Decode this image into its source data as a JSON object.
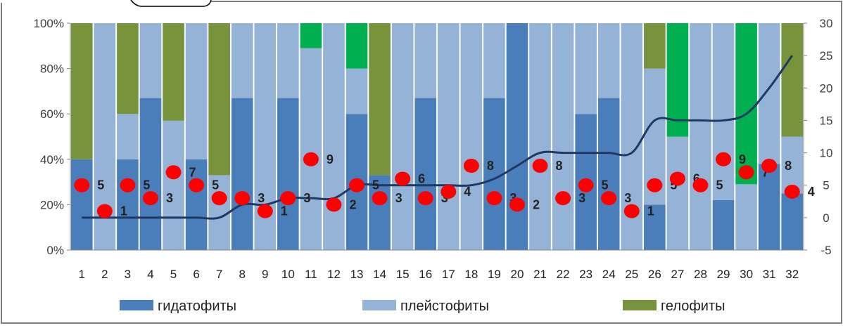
{
  "chart_data": {
    "type": "bar",
    "stacked": "percent",
    "categories": [
      "1",
      "2",
      "3",
      "4",
      "5",
      "6",
      "7",
      "8",
      "9",
      "10",
      "11",
      "12",
      "13",
      "14",
      "15",
      "16",
      "17",
      "18",
      "19",
      "20",
      "21",
      "22",
      "23",
      "24",
      "25",
      "26",
      "27",
      "28",
      "29",
      "30",
      "31",
      "32"
    ],
    "series": [
      {
        "name": "гидатофиты",
        "color": "#4a7ebb",
        "values": [
          40,
          0,
          40,
          67,
          0,
          40,
          0,
          67,
          0,
          67,
          0,
          0,
          60,
          33,
          0,
          67,
          0,
          0,
          67,
          100,
          0,
          0,
          60,
          67,
          0,
          20,
          0,
          0,
          22,
          0,
          38,
          25
        ]
      },
      {
        "name": "плейстофиты",
        "color": "#95b3d7",
        "values": [
          0,
          100,
          20,
          33,
          57,
          60,
          33,
          33,
          100,
          33,
          89,
          100,
          20,
          0,
          100,
          33,
          100,
          100,
          33,
          0,
          100,
          100,
          40,
          33,
          100,
          60,
          50,
          100,
          78,
          29,
          62,
          25
        ]
      },
      {
        "name": "гелофиты",
        "color": "#77933c",
        "values": [
          60,
          0,
          40,
          0,
          43,
          0,
          67,
          0,
          0,
          0,
          0,
          0,
          0,
          67,
          0,
          0,
          0,
          0,
          0,
          0,
          0,
          0,
          0,
          0,
          0,
          20,
          0,
          0,
          0,
          0,
          0,
          50
        ]
      },
      {
        "name": "",
        "color": "#00b050",
        "values": [
          0,
          0,
          0,
          0,
          0,
          0,
          0,
          0,
          0,
          0,
          11,
          0,
          20,
          0,
          0,
          0,
          0,
          0,
          0,
          0,
          0,
          0,
          0,
          0,
          0,
          0,
          50,
          0,
          0,
          71,
          0,
          0
        ]
      }
    ],
    "points": {
      "color": "#ff0000",
      "values": [
        5,
        1,
        5,
        3,
        7,
        5,
        3,
        3,
        1,
        3,
        9,
        2,
        5,
        3,
        6,
        3,
        4,
        8,
        3,
        2,
        8,
        3,
        5,
        3,
        1,
        5,
        6,
        5,
        9,
        7,
        8,
        4
      ],
      "labels": [
        "5",
        "1",
        "5",
        "3",
        "7",
        "5",
        "3",
        "3",
        "1",
        "3",
        "9",
        "2",
        "5",
        "3",
        "6",
        "3",
        "4",
        "8",
        "3",
        "2",
        "8",
        "3",
        "5",
        "3",
        "1",
        "5",
        "6",
        "5",
        "9",
        "7",
        "8",
        "4"
      ]
    },
    "line": {
      "color": "#1f3864",
      "values": [
        0,
        0,
        0,
        0,
        0,
        0,
        0,
        2,
        2,
        3,
        3,
        3,
        5,
        5,
        5,
        5,
        5,
        5,
        6,
        8,
        10,
        10,
        10,
        10,
        10,
        15,
        15,
        15,
        15,
        16,
        20,
        25
      ]
    },
    "y_left": {
      "min": 0,
      "max": 100,
      "ticks": [
        "0%",
        "20%",
        "40%",
        "60%",
        "80%",
        "100%"
      ]
    },
    "y_right": {
      "min": -5,
      "max": 30,
      "ticks": [
        "-5",
        "0",
        "5",
        "10",
        "15",
        "20",
        "25",
        "30"
      ]
    },
    "grid": false,
    "legend_position": "bottom",
    "legend": [
      {
        "label": "гидатофиты",
        "color": "#4a7ebb"
      },
      {
        "label": "плейстофиты",
        "color": "#95b3d7"
      },
      {
        "label": "гелофиты",
        "color": "#77933c"
      }
    ]
  }
}
